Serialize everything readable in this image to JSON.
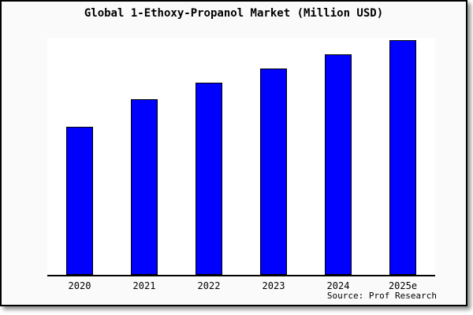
{
  "source": "Source: Prof Research",
  "colors": {
    "bar_fill": "#0000ff",
    "bar_border": "#000000",
    "plot_bg": "#ffffff",
    "chart_bg": "#fafafa",
    "axis": "#000000",
    "text": "#000000"
  },
  "chart_data": {
    "type": "bar",
    "title": "Global 1-Ethoxy-Propanol Market (Million USD)",
    "categories": [
      "2020",
      "2021",
      "2022",
      "2023",
      "2024",
      "2025e"
    ],
    "values": [
      63,
      75,
      82,
      88,
      94,
      100
    ],
    "xlabel": "",
    "ylabel": "",
    "ylim": [
      0,
      101
    ],
    "grid": false,
    "legend": false,
    "y_axis_labels_shown": false,
    "source_note": "Source: Prof Research"
  }
}
